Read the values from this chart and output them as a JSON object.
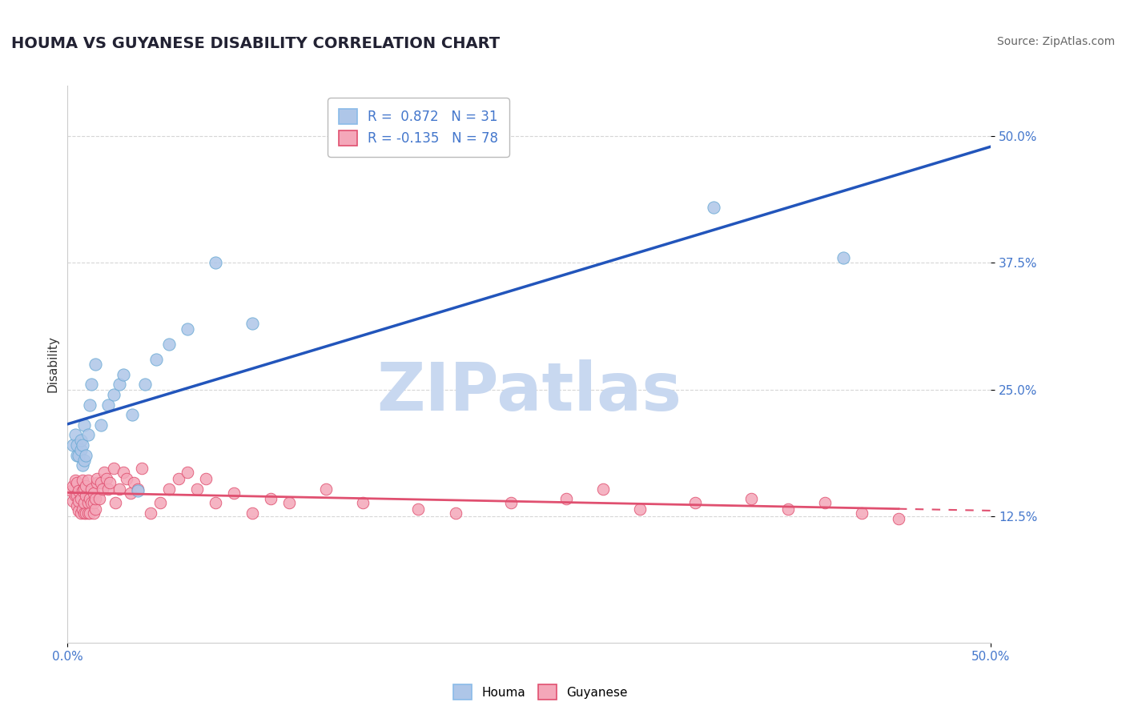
{
  "title": "HOUMA VS GUYANESE DISABILITY CORRELATION CHART",
  "source": "Source: ZipAtlas.com",
  "ylabel": "Disability",
  "watermark": "ZIPatlas",
  "xlim": [
    0.0,
    0.5
  ],
  "ylim": [
    0.0,
    0.55
  ],
  "xticks": [
    0.0,
    0.5
  ],
  "yticks": [
    0.125,
    0.25,
    0.375,
    0.5
  ],
  "xticklabels": [
    "0.0%",
    "50.0%"
  ],
  "yticklabels": [
    "12.5%",
    "25.0%",
    "37.5%",
    "50.0%"
  ],
  "houma_color": "#AEC6E8",
  "houma_edge": "#6AAAD4",
  "guyanese_color": "#F4A7B9",
  "guyanese_edge": "#E05070",
  "line_blue": "#2255BB",
  "line_pink": "#E05070",
  "R_houma": 0.872,
  "N_houma": 31,
  "R_guyanese": -0.135,
  "N_guyanese": 78,
  "houma_x": [
    0.003,
    0.004,
    0.005,
    0.005,
    0.006,
    0.007,
    0.007,
    0.008,
    0.008,
    0.009,
    0.009,
    0.01,
    0.011,
    0.012,
    0.013,
    0.015,
    0.018,
    0.022,
    0.025,
    0.028,
    0.03,
    0.035,
    0.038,
    0.042,
    0.048,
    0.055,
    0.065,
    0.08,
    0.1,
    0.35,
    0.42
  ],
  "houma_y": [
    0.195,
    0.205,
    0.185,
    0.195,
    0.185,
    0.19,
    0.2,
    0.175,
    0.195,
    0.18,
    0.215,
    0.185,
    0.205,
    0.235,
    0.255,
    0.275,
    0.215,
    0.235,
    0.245,
    0.255,
    0.265,
    0.225,
    0.15,
    0.255,
    0.28,
    0.295,
    0.31,
    0.375,
    0.315,
    0.43,
    0.38
  ],
  "guyanese_x": [
    0.002,
    0.003,
    0.003,
    0.004,
    0.004,
    0.005,
    0.005,
    0.005,
    0.006,
    0.006,
    0.006,
    0.007,
    0.007,
    0.008,
    0.008,
    0.008,
    0.009,
    0.009,
    0.009,
    0.01,
    0.01,
    0.01,
    0.011,
    0.011,
    0.011,
    0.012,
    0.012,
    0.013,
    0.013,
    0.014,
    0.014,
    0.014,
    0.015,
    0.015,
    0.016,
    0.016,
    0.017,
    0.018,
    0.019,
    0.02,
    0.021,
    0.022,
    0.023,
    0.025,
    0.026,
    0.028,
    0.03,
    0.032,
    0.034,
    0.036,
    0.038,
    0.04,
    0.045,
    0.05,
    0.055,
    0.06,
    0.065,
    0.07,
    0.075,
    0.08,
    0.09,
    0.1,
    0.11,
    0.12,
    0.14,
    0.16,
    0.19,
    0.21,
    0.24,
    0.27,
    0.29,
    0.31,
    0.34,
    0.37,
    0.39,
    0.41,
    0.43,
    0.45
  ],
  "guyanese_y": [
    0.15,
    0.14,
    0.155,
    0.145,
    0.16,
    0.135,
    0.145,
    0.158,
    0.13,
    0.14,
    0.15,
    0.128,
    0.142,
    0.132,
    0.15,
    0.16,
    0.128,
    0.138,
    0.152,
    0.128,
    0.145,
    0.155,
    0.128,
    0.138,
    0.16,
    0.128,
    0.142,
    0.138,
    0.152,
    0.128,
    0.148,
    0.138,
    0.132,
    0.142,
    0.158,
    0.162,
    0.142,
    0.158,
    0.152,
    0.168,
    0.162,
    0.152,
    0.158,
    0.172,
    0.138,
    0.152,
    0.168,
    0.162,
    0.148,
    0.158,
    0.152,
    0.172,
    0.128,
    0.138,
    0.152,
    0.162,
    0.168,
    0.152,
    0.162,
    0.138,
    0.148,
    0.128,
    0.142,
    0.138,
    0.152,
    0.138,
    0.132,
    0.128,
    0.138,
    0.142,
    0.152,
    0.132,
    0.138,
    0.142,
    0.132,
    0.138,
    0.128,
    0.122
  ],
  "title_color": "#222233",
  "title_fontsize": 14,
  "axis_label_fontsize": 11,
  "tick_fontsize": 11,
  "legend_fontsize": 12,
  "source_fontsize": 10,
  "source_color": "#666666",
  "watermark_color": "#C8D8F0",
  "watermark_fontsize": 60,
  "background_color": "#FFFFFF",
  "grid_color": "#BBBBBB",
  "grid_alpha": 0.6,
  "tick_color": "#4477CC"
}
